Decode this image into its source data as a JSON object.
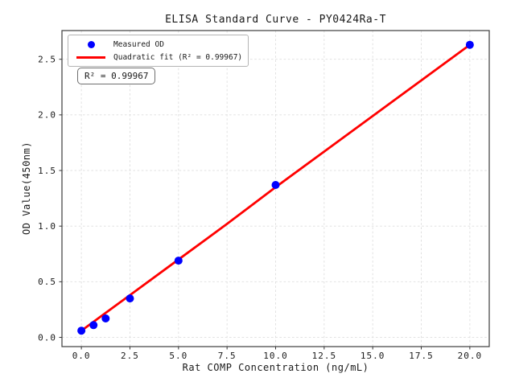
{
  "figure_background": "#ffffff",
  "chart_data": {
    "type": "scatter",
    "title": "ELISA Standard Curve - PY0424Ra-T",
    "xlabel": "Rat COMP Concentration (ng/mL)",
    "ylabel": "OD Value(450nm)",
    "annotation": "R² = 0.99967",
    "r_squared": 0.99967,
    "xlim": [
      -1,
      21
    ],
    "ylim": [
      -0.083,
      2.758
    ],
    "xticks": [
      0,
      2.5,
      5,
      7.5,
      10,
      12.5,
      15,
      17.5,
      20
    ],
    "xtick_labels": [
      "0.0",
      "2.5",
      "5.0",
      "7.5",
      "10.0",
      "12.5",
      "15.0",
      "17.5",
      "20.0"
    ],
    "yticks": [
      0,
      0.5,
      1.0,
      1.5,
      2.0,
      2.5
    ],
    "ytick_labels": [
      "0.0",
      "0.5",
      "1.0",
      "1.5",
      "2.0",
      "2.5"
    ],
    "grid": true,
    "grid_style": "dashed",
    "legend_position": "upper left",
    "series": [
      {
        "name": "Measured OD",
        "type": "scatter",
        "color": "#0000ff",
        "x": [
          0,
          0.625,
          1.25,
          2.5,
          5,
          10,
          20
        ],
        "y": [
          0.06,
          0.11,
          0.17,
          0.35,
          0.69,
          1.37,
          2.63
        ]
      },
      {
        "name": "Quadratic fit (R² = 0.99967)",
        "type": "line",
        "color": "#ff0000",
        "x": [
          0,
          2.5,
          5,
          7.5,
          10,
          12.5,
          15,
          17.5,
          20
        ],
        "y": [
          0.06,
          0.38,
          0.7,
          1.02,
          1.35,
          1.67,
          1.99,
          2.31,
          2.63
        ]
      }
    ],
    "colors": {
      "scatter": "#0000ff",
      "fit_line": "#ff0000",
      "gridline": "#dedede",
      "spine": "#3c3c3c",
      "tick": "#333333"
    }
  }
}
